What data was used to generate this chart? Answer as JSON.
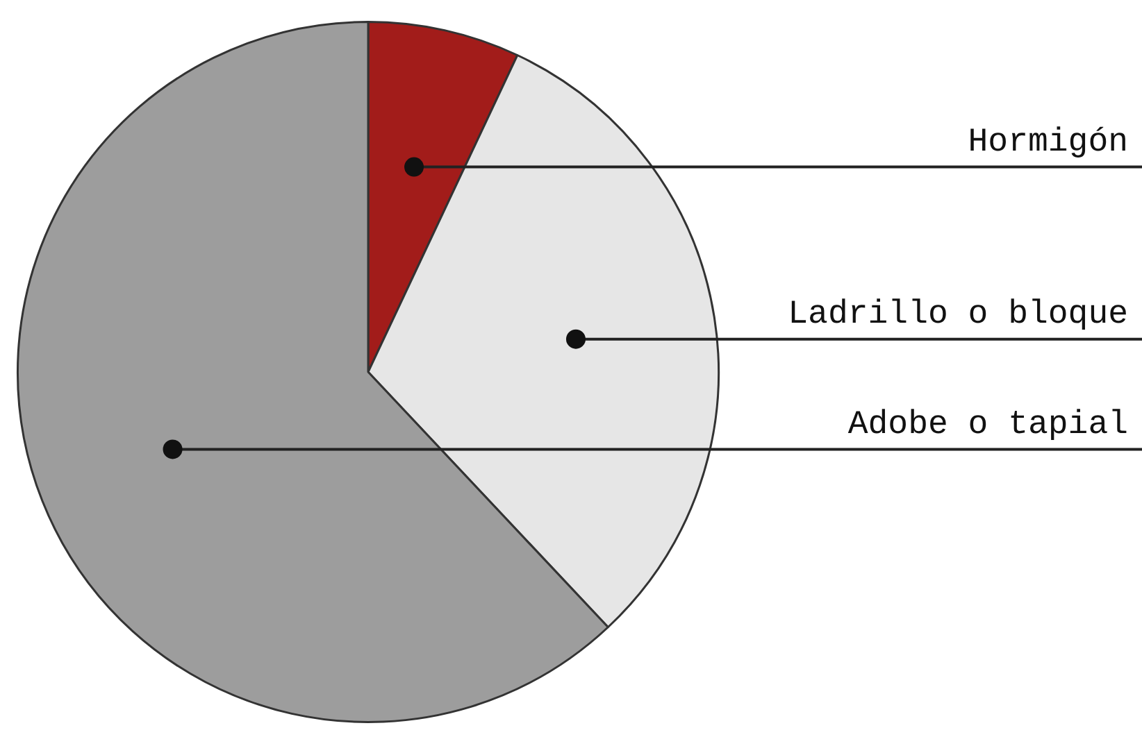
{
  "chart_data": {
    "type": "pie",
    "categories": [
      "Hormigón",
      "Ladrillo o bloque",
      "Adobe o tapial"
    ],
    "values": [
      7,
      31,
      62
    ],
    "colors": [
      "#a21c1a",
      "#e6e6e6",
      "#9d9d9d"
    ],
    "legend": false
  }
}
